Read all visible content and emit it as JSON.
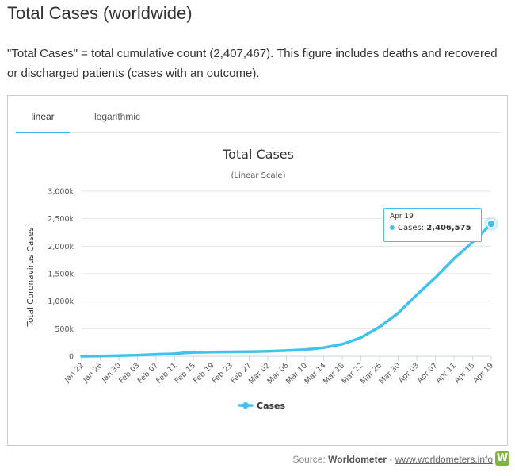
{
  "page": {
    "title": "Total Cases (worldwide)",
    "description": "\"Total Cases\" = total cumulative count (2,407,467). This figure includes deaths and recovered or discharged patients (cases with an outcome)."
  },
  "tabs": [
    {
      "label": "linear",
      "active": true
    },
    {
      "label": "logarithmic",
      "active": false
    }
  ],
  "tooltip": {
    "date": "Apr 19",
    "series": "Cases",
    "value": "2,406,575"
  },
  "source": {
    "prefix": "Source:",
    "brand": "Worldometer",
    "separator": "-",
    "link": "www.worldometers.info",
    "logo_letter": "W"
  },
  "colors": {
    "series": "#41c1f0",
    "tab_active": "#41b4e5",
    "grid": "#e6e6e6",
    "logo": "#7cb342"
  },
  "chart_data": {
    "type": "line",
    "title": "Total Cases",
    "subtitle": "(Linear Scale)",
    "ylabel": "Total Coronavirus Cases",
    "xlabel": "",
    "ylim": [
      0,
      3000000
    ],
    "y_ticks": [
      0,
      500000,
      1000000,
      1500000,
      2000000,
      2500000,
      3000000
    ],
    "y_tick_labels": [
      "0",
      "500k",
      "1,000k",
      "1,500k",
      "2,000k",
      "2,500k",
      "3,000k"
    ],
    "x_ticks": [
      "Jan 22",
      "Jan 26",
      "Jan 30",
      "Feb 03",
      "Feb 07",
      "Feb 11",
      "Feb 15",
      "Feb 19",
      "Feb 23",
      "Feb 27",
      "Mar 02",
      "Mar 06",
      "Mar 10",
      "Mar 14",
      "Mar 18",
      "Mar 22",
      "Mar 26",
      "Mar 30",
      "Apr 03",
      "Apr 07",
      "Apr 11",
      "Apr 15",
      "Apr 19"
    ],
    "legend": "bottom-center",
    "grid": true,
    "series": [
      {
        "name": "Cases",
        "x": [
          "Jan 22",
          "Jan 26",
          "Jan 30",
          "Feb 03",
          "Feb 07",
          "Feb 11",
          "Feb 13",
          "Feb 15",
          "Feb 19",
          "Feb 23",
          "Feb 27",
          "Mar 02",
          "Mar 06",
          "Mar 10",
          "Mar 14",
          "Mar 18",
          "Mar 22",
          "Mar 26",
          "Mar 30",
          "Apr 03",
          "Apr 05",
          "Apr 07",
          "Apr 09",
          "Apr 11",
          "Apr 13",
          "Apr 15",
          "Apr 17",
          "Apr 19"
        ],
        "values": [
          580,
          2800,
          9800,
          20600,
          34900,
          45200,
          60400,
          69000,
          75700,
          79300,
          83000,
          90300,
          101800,
          119000,
          156000,
          218000,
          337000,
          531000,
          783000,
          1116000,
          1273000,
          1427000,
          1601000,
          1772000,
          1922000,
          2077000,
          2240000,
          2406575
        ]
      }
    ]
  }
}
